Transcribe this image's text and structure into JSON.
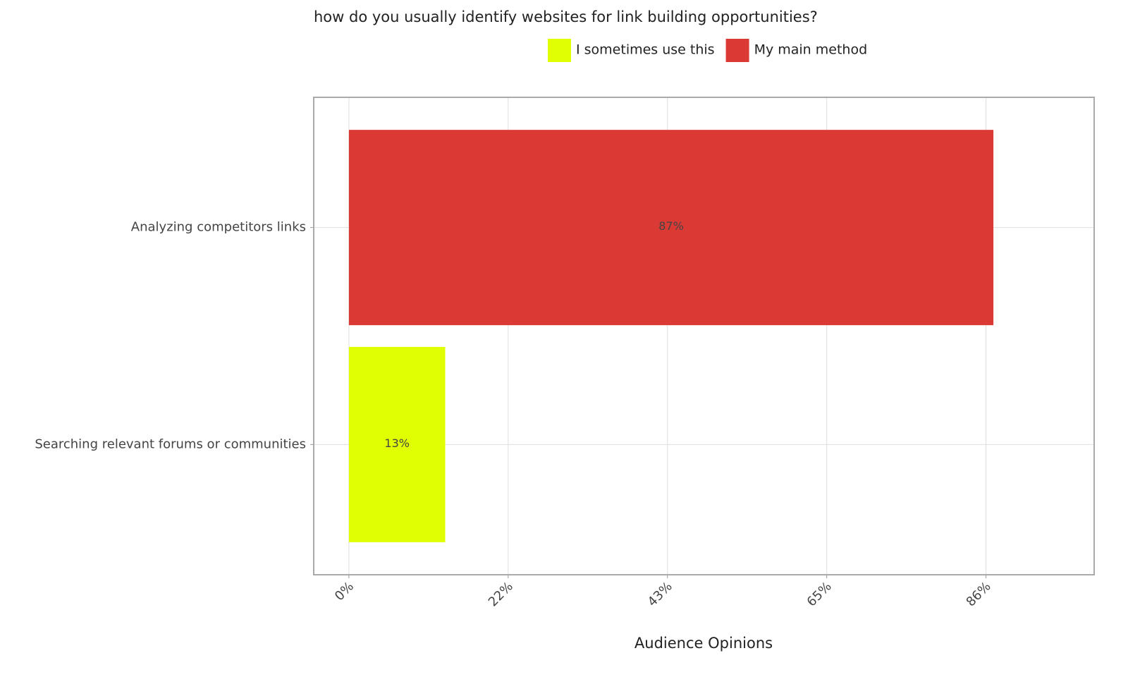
{
  "chart_data": {
    "type": "bar",
    "orientation": "horizontal",
    "title": "how do you usually identify websites for link building opportunities?",
    "x_label": "Audience Opinions",
    "categories": [
      "Analyzing competitors links",
      "Searching relevant forums or communities"
    ],
    "series": [
      {
        "name": "I sometimes use this",
        "color": "#e0ff00",
        "values": [
          null,
          13
        ],
        "value_labels": [
          null,
          "13%"
        ]
      },
      {
        "name": "My main method",
        "color": "#db3a34",
        "values": [
          87,
          null
        ],
        "value_labels": [
          "87%",
          null
        ]
      }
    ],
    "xlim": [
      -4.75,
      100.6
    ],
    "xticks": [
      {
        "value": 0,
        "label": "0%"
      },
      {
        "value": 21.5,
        "label": "22%"
      },
      {
        "value": 43,
        "label": "43%"
      },
      {
        "value": 64.5,
        "label": "65%"
      },
      {
        "value": 86,
        "label": "86%"
      }
    ],
    "grid": true,
    "legend": "top"
  }
}
